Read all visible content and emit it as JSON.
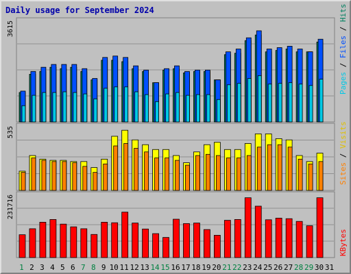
{
  "title": "Daily usage for September 2024",
  "colors": {
    "hits": "#00c8e6",
    "files": "#0050ff",
    "pages": "#008060",
    "visits": "#ffff00",
    "sites": "#ff8000",
    "kbytes": "#ff0000",
    "panel_bg": "#c0c0c0",
    "day_weekday": "#000000",
    "day_weekend": "#008040"
  },
  "chart_data": [
    {
      "type": "bar",
      "title": "Daily usage for September 2024",
      "ylabel": "Pages / Files / Hits",
      "ymax_label": "3615",
      "ylim": [
        0,
        3615
      ],
      "categories": [
        "1",
        "2",
        "3",
        "4",
        "5",
        "6",
        "7",
        "8",
        "9",
        "10",
        "11",
        "12",
        "13",
        "14",
        "15",
        "16",
        "17",
        "18",
        "19",
        "20",
        "21",
        "22",
        "23",
        "24",
        "25",
        "26",
        "27",
        "28",
        "29",
        "30",
        "31"
      ],
      "series": [
        {
          "name": "Hits",
          "values": [
            1160,
            1900,
            2100,
            2100,
            2150,
            2100,
            2000,
            1650,
            2400,
            2500,
            2500,
            2150,
            1950,
            1450,
            2000,
            2100,
            1900,
            1950,
            1950,
            1600,
            2650,
            2750,
            3100,
            3300,
            2700,
            2750,
            2800,
            2700,
            2600,
            3050,
            0
          ]
        },
        {
          "name": "Files",
          "values": [
            1100,
            1800,
            1950,
            2050,
            2050,
            2050,
            1900,
            1550,
            2300,
            2350,
            2300,
            2000,
            1850,
            1400,
            1900,
            2000,
            1800,
            1850,
            1850,
            1500,
            2500,
            2600,
            3000,
            3250,
            2600,
            2650,
            2700,
            2600,
            2500,
            2950,
            0
          ]
        },
        {
          "name": "Pages",
          "values": [
            1050,
            1700,
            1800,
            1950,
            1900,
            1950,
            1800,
            1500,
            2200,
            2200,
            2150,
            1900,
            1800,
            1400,
            1850,
            1900,
            1750,
            1800,
            1800,
            1500,
            2400,
            2450,
            2900,
            3100,
            2500,
            2550,
            2600,
            2500,
            2500,
            2850,
            0
          ]
        }
      ]
    },
    {
      "type": "bar",
      "ylabel": "Sites / Visits",
      "ymax_label": "535",
      "ylim": [
        0,
        535
      ],
      "categories": [
        "1",
        "2",
        "3",
        "4",
        "5",
        "6",
        "7",
        "8",
        "9",
        "10",
        "11",
        "12",
        "13",
        "14",
        "15",
        "16",
        "17",
        "18",
        "19",
        "20",
        "21",
        "22",
        "23",
        "24",
        "25",
        "26",
        "27",
        "28",
        "29",
        "30",
        "31"
      ],
      "series": [
        {
          "name": "Visits",
          "values": [
            160,
            290,
            260,
            250,
            250,
            240,
            240,
            190,
            260,
            450,
            500,
            420,
            380,
            340,
            340,
            290,
            230,
            320,
            380,
            400,
            340,
            340,
            390,
            470,
            470,
            430,
            420,
            290,
            240,
            310,
            0
          ]
        },
        {
          "name": "Sites",
          "values": [
            150,
            270,
            250,
            240,
            240,
            230,
            200,
            150,
            220,
            370,
            390,
            350,
            320,
            270,
            270,
            250,
            210,
            290,
            300,
            290,
            270,
            270,
            290,
            360,
            380,
            380,
            360,
            260,
            220,
            240,
            0
          ]
        }
      ]
    },
    {
      "type": "bar",
      "ylabel": "KBytes",
      "ymax_label": "231716",
      "ylim": [
        0,
        231716
      ],
      "categories": [
        "1",
        "2",
        "3",
        "4",
        "5",
        "6",
        "7",
        "8",
        "9",
        "10",
        "11",
        "12",
        "13",
        "14",
        "15",
        "16",
        "17",
        "18",
        "19",
        "20",
        "21",
        "22",
        "23",
        "24",
        "25",
        "26",
        "27",
        "28",
        "29",
        "30",
        "31"
      ],
      "series": [
        {
          "name": "KBytes",
          "values": [
            84000,
            106000,
            130000,
            140000,
            123000,
            113000,
            106000,
            85000,
            130000,
            128000,
            167000,
            127000,
            105000,
            88000,
            74000,
            141000,
            125000,
            127000,
            103000,
            82000,
            137000,
            140000,
            220000,
            189000,
            139000,
            145000,
            143000,
            133000,
            117000,
            220000,
            0
          ]
        }
      ]
    }
  ],
  "days": [
    "1",
    "2",
    "3",
    "4",
    "5",
    "6",
    "7",
    "8",
    "9",
    "10",
    "11",
    "12",
    "13",
    "14",
    "15",
    "16",
    "17",
    "18",
    "19",
    "20",
    "21",
    "22",
    "23",
    "24",
    "25",
    "26",
    "27",
    "28",
    "29",
    "30",
    "31"
  ],
  "weekend_days": [
    "1",
    "7",
    "8",
    "14",
    "15",
    "21",
    "22",
    "28",
    "29"
  ]
}
